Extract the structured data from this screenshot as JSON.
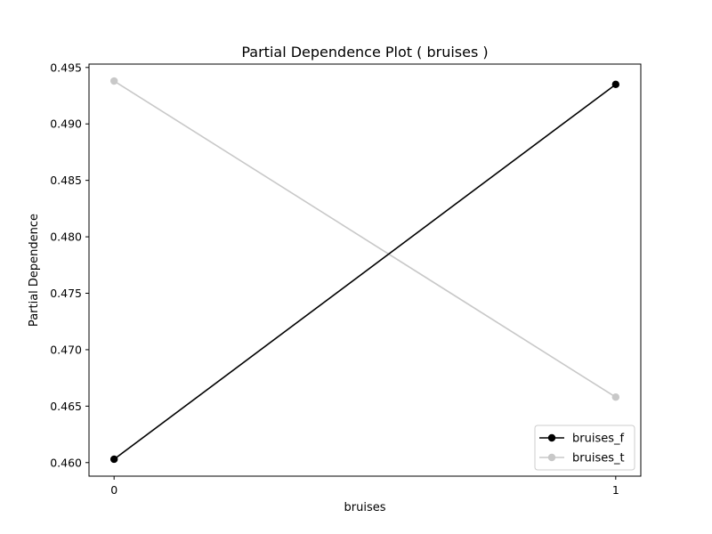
{
  "chart_data": {
    "type": "line",
    "title": "Partial Dependence Plot ( bruises )",
    "xlabel": "bruises",
    "ylabel": "Partial Dependence",
    "x": [
      0,
      1
    ],
    "xticks": [
      0,
      1
    ],
    "xlim": [
      -0.05,
      1.05
    ],
    "yticks": [
      0.46,
      0.465,
      0.47,
      0.475,
      0.48,
      0.485,
      0.49,
      0.495
    ],
    "ytick_labels": [
      "0.460",
      "0.465",
      "0.470",
      "0.475",
      "0.480",
      "0.485",
      "0.490",
      "0.495"
    ],
    "ylim": [
      0.4588,
      0.4953
    ],
    "grid": false,
    "legend_position": "lower-right",
    "series": [
      {
        "name": "bruises_f",
        "color": "#000000",
        "values": [
          0.4603,
          0.4935
        ]
      },
      {
        "name": "bruises_t",
        "color": "#c8c8c8",
        "values": [
          0.4938,
          0.4658
        ]
      }
    ]
  }
}
